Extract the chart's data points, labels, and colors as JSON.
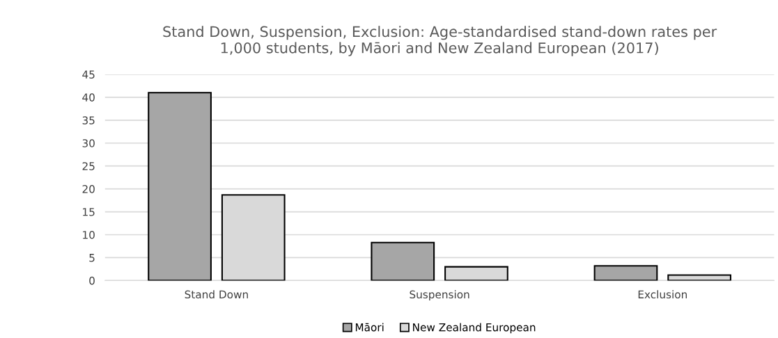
{
  "chart_data": {
    "type": "bar",
    "title": "Stand Down, Suspension, Exclusion: Age-standardised stand-down rates per\n1,000 students, by Māori and New Zealand European (2017)",
    "categories": [
      "Stand Down",
      "Suspension",
      "Exclusion"
    ],
    "series": [
      {
        "name": "Māori",
        "color": "#a6a6a6",
        "values": [
          41.0,
          8.3,
          3.2
        ]
      },
      {
        "name": "New Zealand European",
        "color": "#d9d9d9",
        "values": [
          18.7,
          3.0,
          1.2
        ]
      }
    ],
    "ylim": [
      0,
      45
    ],
    "yticks": [
      0,
      5,
      10,
      15,
      20,
      25,
      30,
      35,
      40,
      45
    ],
    "grid": "y",
    "legend": "bottom"
  }
}
